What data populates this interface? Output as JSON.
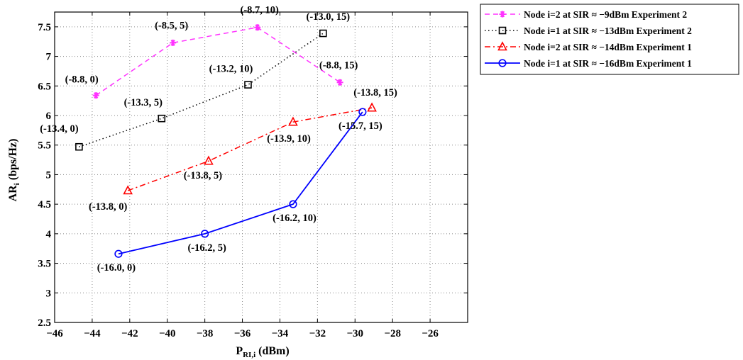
{
  "chart_data": {
    "type": "line",
    "title": "",
    "xlabel": "P",
    "xlabel_sub": "RI,i",
    "xlabel_unit": " (dBm)",
    "ylabel": "AR",
    "ylabel_sub": "i",
    "ylabel_unit": " (bps/Hz)",
    "xlim": [
      -46,
      -24
    ],
    "ylim": [
      2.5,
      7.75
    ],
    "xticks": [
      -46,
      -44,
      -42,
      -40,
      -38,
      -36,
      -34,
      -32,
      -30,
      -28,
      -26
    ],
    "yticks": [
      2.5,
      3,
      3.5,
      4,
      4.5,
      5,
      5.5,
      6,
      6.5,
      7,
      7.5
    ],
    "grid": true,
    "legend_position": "top-right",
    "series": [
      {
        "name": "Node i=2 at SIR ≈ −9dBm Experiment 2",
        "color": "#ff33ff",
        "line": "dashed",
        "marker": "asterisk",
        "x": [
          -43.8,
          -39.7,
          -35.2,
          -30.8
        ],
        "y": [
          6.34,
          7.23,
          7.49,
          6.56
        ],
        "labels": [
          "(-8.8, 0)",
          "(-8.5, 5)",
          "(-8.7, 10)",
          "(-8.8, 15)"
        ]
      },
      {
        "name": "Node i=1 at SIR ≈ −13dBm Experiment 2",
        "color": "#000000",
        "line": "dotted",
        "marker": "square",
        "x": [
          -44.7,
          -40.3,
          -35.7,
          -31.7
        ],
        "y": [
          5.47,
          5.95,
          6.52,
          7.39
        ],
        "labels": [
          "(-13.4, 0)",
          "(-13.3, 5)",
          "(-13.2, 10)",
          "(-13.0, 15)"
        ]
      },
      {
        "name": "Node i=2 at SIR ≈ −14dBm Experiment 1",
        "color": "#ff0000",
        "line": "dashdot",
        "marker": "triangle",
        "x": [
          -42.1,
          -37.8,
          -33.3,
          -29.1
        ],
        "y": [
          4.73,
          5.23,
          5.89,
          6.13
        ],
        "labels": [
          "(-13.8, 0)",
          "(-13.8, 5)",
          "(-13.9, 10)",
          "(-13.8, 15)"
        ]
      },
      {
        "name": "Node i=1 at SIR ≈ −16dBm Experiment 1",
        "color": "#0000ff",
        "line": "solid",
        "marker": "circle",
        "x": [
          -42.6,
          -38.0,
          -33.3,
          -29.6
        ],
        "y": [
          3.66,
          4.0,
          4.5,
          6.06
        ],
        "labels": [
          "(-16.0, 0)",
          "(-16.2, 5)",
          "(-16.2, 10)",
          "(-15.7, 15)"
        ]
      }
    ]
  }
}
